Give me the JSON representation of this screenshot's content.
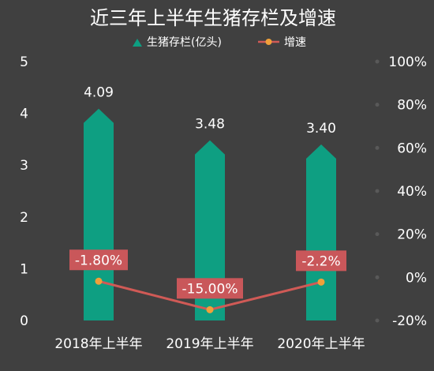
{
  "chart_data": {
    "type": "bar",
    "title": "近三年上半年生猪存栏及增速",
    "categories": [
      "2018年上半年",
      "2019年上半年",
      "2020年上半年"
    ],
    "series": [
      {
        "name": "生猪存栏(亿头)",
        "type": "bar",
        "axis": "left",
        "values": [
          4.09,
          3.48,
          3.4
        ],
        "labels": [
          "4.09",
          "3.48",
          "3.40"
        ],
        "color": "#0e9f82"
      },
      {
        "name": "增速",
        "type": "line",
        "axis": "right",
        "values": [
          -1.8,
          -15.0,
          -2.2
        ],
        "labels": [
          "-1.80%",
          "-15.00%",
          "-2.2%"
        ],
        "color": "#d05a56",
        "marker_color": "#f0a03a"
      }
    ],
    "y_left": {
      "ylim": [
        0,
        5
      ],
      "ticks": [
        "0",
        "1",
        "2",
        "3",
        "4",
        "5"
      ]
    },
    "y_right": {
      "ylim": [
        -20,
        100
      ],
      "ticks": [
        "-20%",
        "0%",
        "20%",
        "40%",
        "60%",
        "80%",
        "100%"
      ]
    },
    "legend_position": "top-center",
    "grid": false,
    "colors": {
      "background": "#404040",
      "text": "#ffffff",
      "label_box": "#c9575a",
      "right_axis_dots": "#595959"
    }
  }
}
